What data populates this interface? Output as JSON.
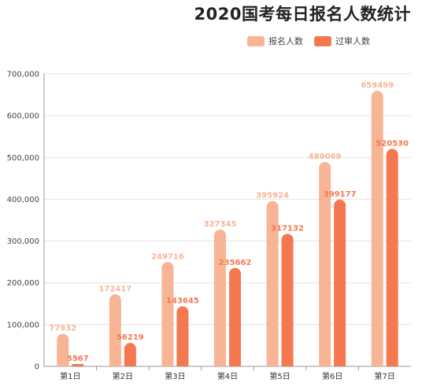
{
  "chart_data": {
    "type": "bar",
    "title": "2020国考每日报名人数统计",
    "categories": [
      "第1日",
      "第2日",
      "第3日",
      "第4日",
      "第5日",
      "第6日",
      "第7日"
    ],
    "series": [
      {
        "name": "报名人数",
        "color": "#f7b595",
        "values": [
          77932,
          172417,
          249716,
          327345,
          395924,
          489069,
          659499
        ]
      },
      {
        "name": "过审人数",
        "color": "#f47950",
        "values": [
          5567,
          56219,
          143645,
          235662,
          317132,
          399177,
          520530
        ]
      }
    ],
    "yticks": [
      "0",
      "100,000",
      "200,000",
      "300,000",
      "400,000",
      "500,000",
      "600,000",
      "700,000"
    ],
    "ylim": [
      0,
      700000
    ],
    "xlabel": "",
    "ylabel": "",
    "grid": true,
    "legend_position": "top-right"
  }
}
